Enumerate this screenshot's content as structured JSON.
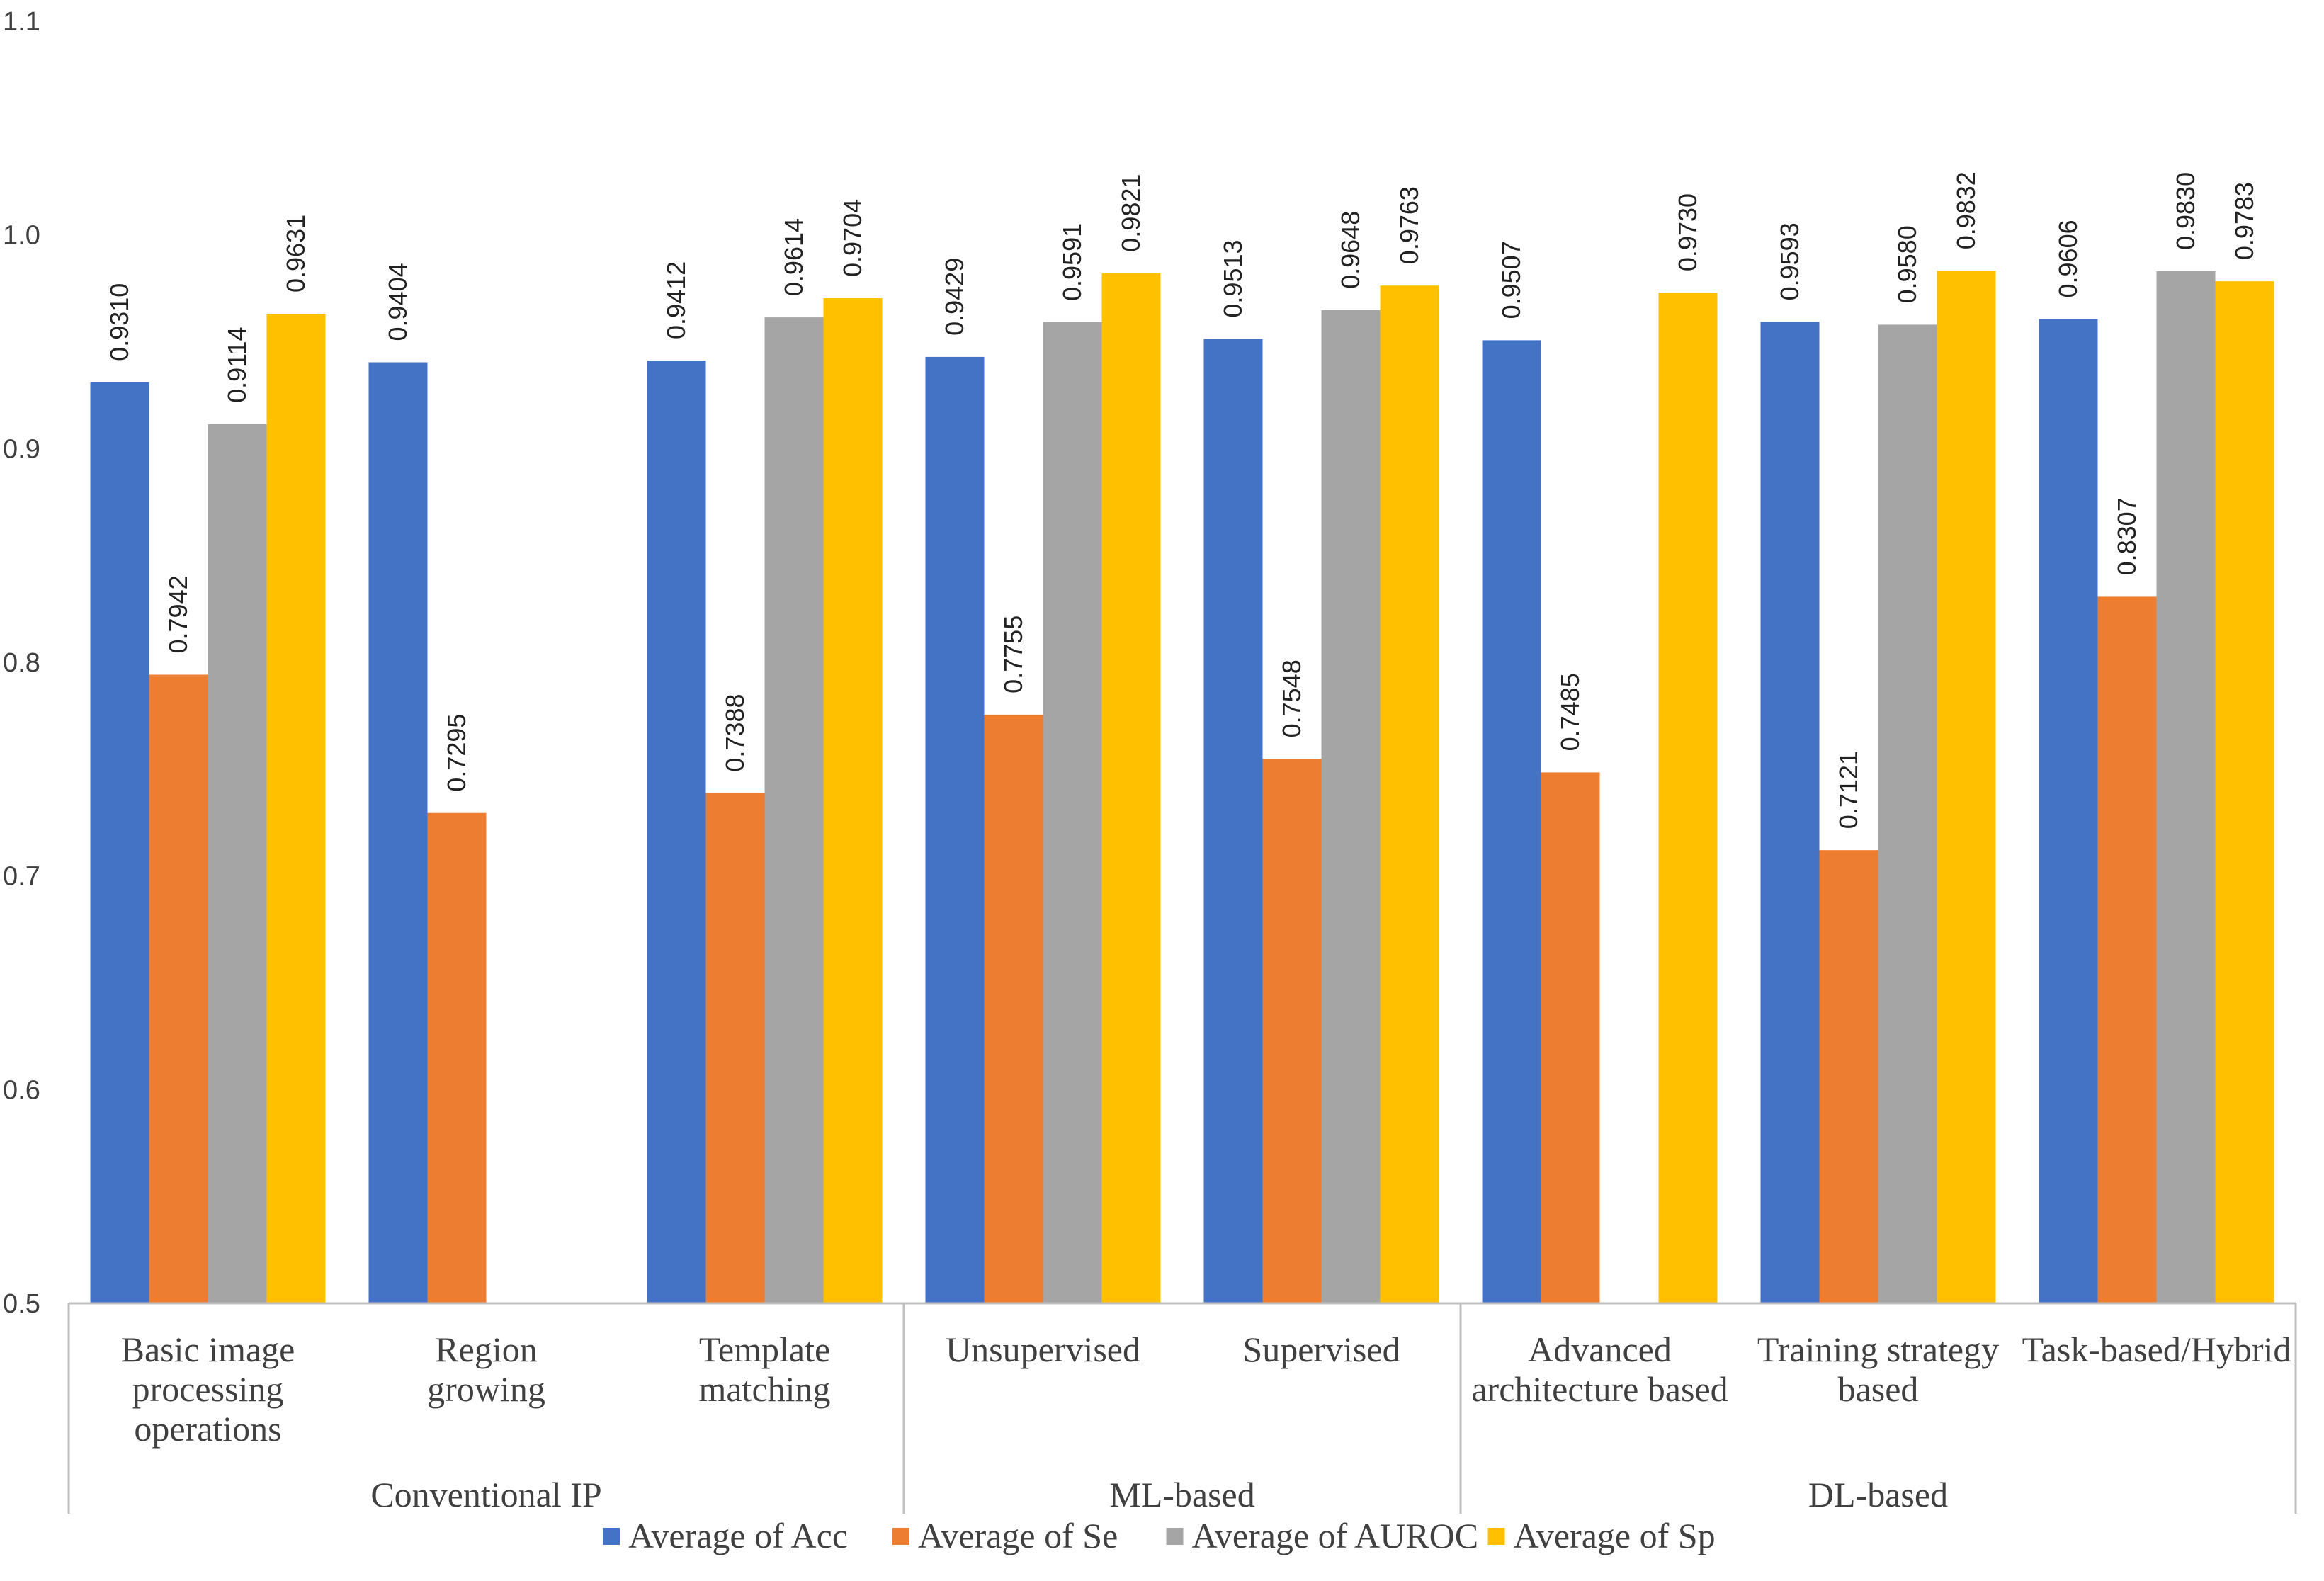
{
  "chart_data": {
    "type": "bar",
    "title": "",
    "xlabel": "",
    "ylabel": "",
    "ylim": [
      0.5,
      1.1
    ],
    "yticks": [
      "0.5",
      "0.6",
      "0.7",
      "0.8",
      "0.9",
      "1.0",
      "1.1"
    ],
    "grid": false,
    "legend_position": "bottom",
    "groups": [
      {
        "label": "Conventional IP",
        "categories": [
          0,
          1,
          2
        ]
      },
      {
        "label": "ML-based",
        "categories": [
          3,
          4
        ]
      },
      {
        "label": "DL-based",
        "categories": [
          5,
          6,
          7
        ]
      }
    ],
    "categories": [
      [
        "Basic image",
        "processing",
        "operations"
      ],
      [
        "Region",
        "growing"
      ],
      [
        "Template",
        "matching"
      ],
      [
        "Unsupervised"
      ],
      [
        "Supervised"
      ],
      [
        "Advanced",
        "architecture based"
      ],
      [
        "Training strategy",
        "based"
      ],
      [
        "Task-based/Hybrid"
      ]
    ],
    "series": [
      {
        "name": "Average of Acc",
        "color": "#4472C4",
        "values": [
          0.931,
          0.9404,
          0.9412,
          0.9429,
          0.9513,
          0.9507,
          0.9593,
          0.9606
        ],
        "labels": [
          "0.9310",
          "0.9404",
          "0.9412",
          "0.9429",
          "0.9513",
          "0.9507",
          "0.9593",
          "0.9606"
        ]
      },
      {
        "name": "Average of Se",
        "color": "#ED7D31",
        "values": [
          0.7942,
          0.7295,
          0.7388,
          0.7755,
          0.7548,
          0.7485,
          0.7121,
          0.8307
        ],
        "labels": [
          "0.7942",
          "0.7295",
          "0.7388",
          "0.7755",
          "0.7548",
          "0.7485",
          "0.7121",
          "0.8307"
        ]
      },
      {
        "name": "Average of AUROC",
        "color": "#A5A5A5",
        "values": [
          0.9114,
          null,
          0.9614,
          0.9591,
          0.9648,
          null,
          0.958,
          0.983
        ],
        "labels": [
          "0.9114",
          null,
          "0.9614",
          "0.9591",
          "0.9648",
          null,
          "0.9580",
          "0.9830"
        ]
      },
      {
        "name": "Average of Sp",
        "color": "#FFC000",
        "values": [
          0.9631,
          null,
          0.9704,
          0.9821,
          0.9763,
          0.973,
          0.9832,
          0.9783
        ],
        "labels": [
          "0.9631",
          null,
          "0.9704",
          "0.9821",
          "0.9763",
          "0.9730",
          "0.9832",
          "0.9783"
        ]
      }
    ]
  }
}
